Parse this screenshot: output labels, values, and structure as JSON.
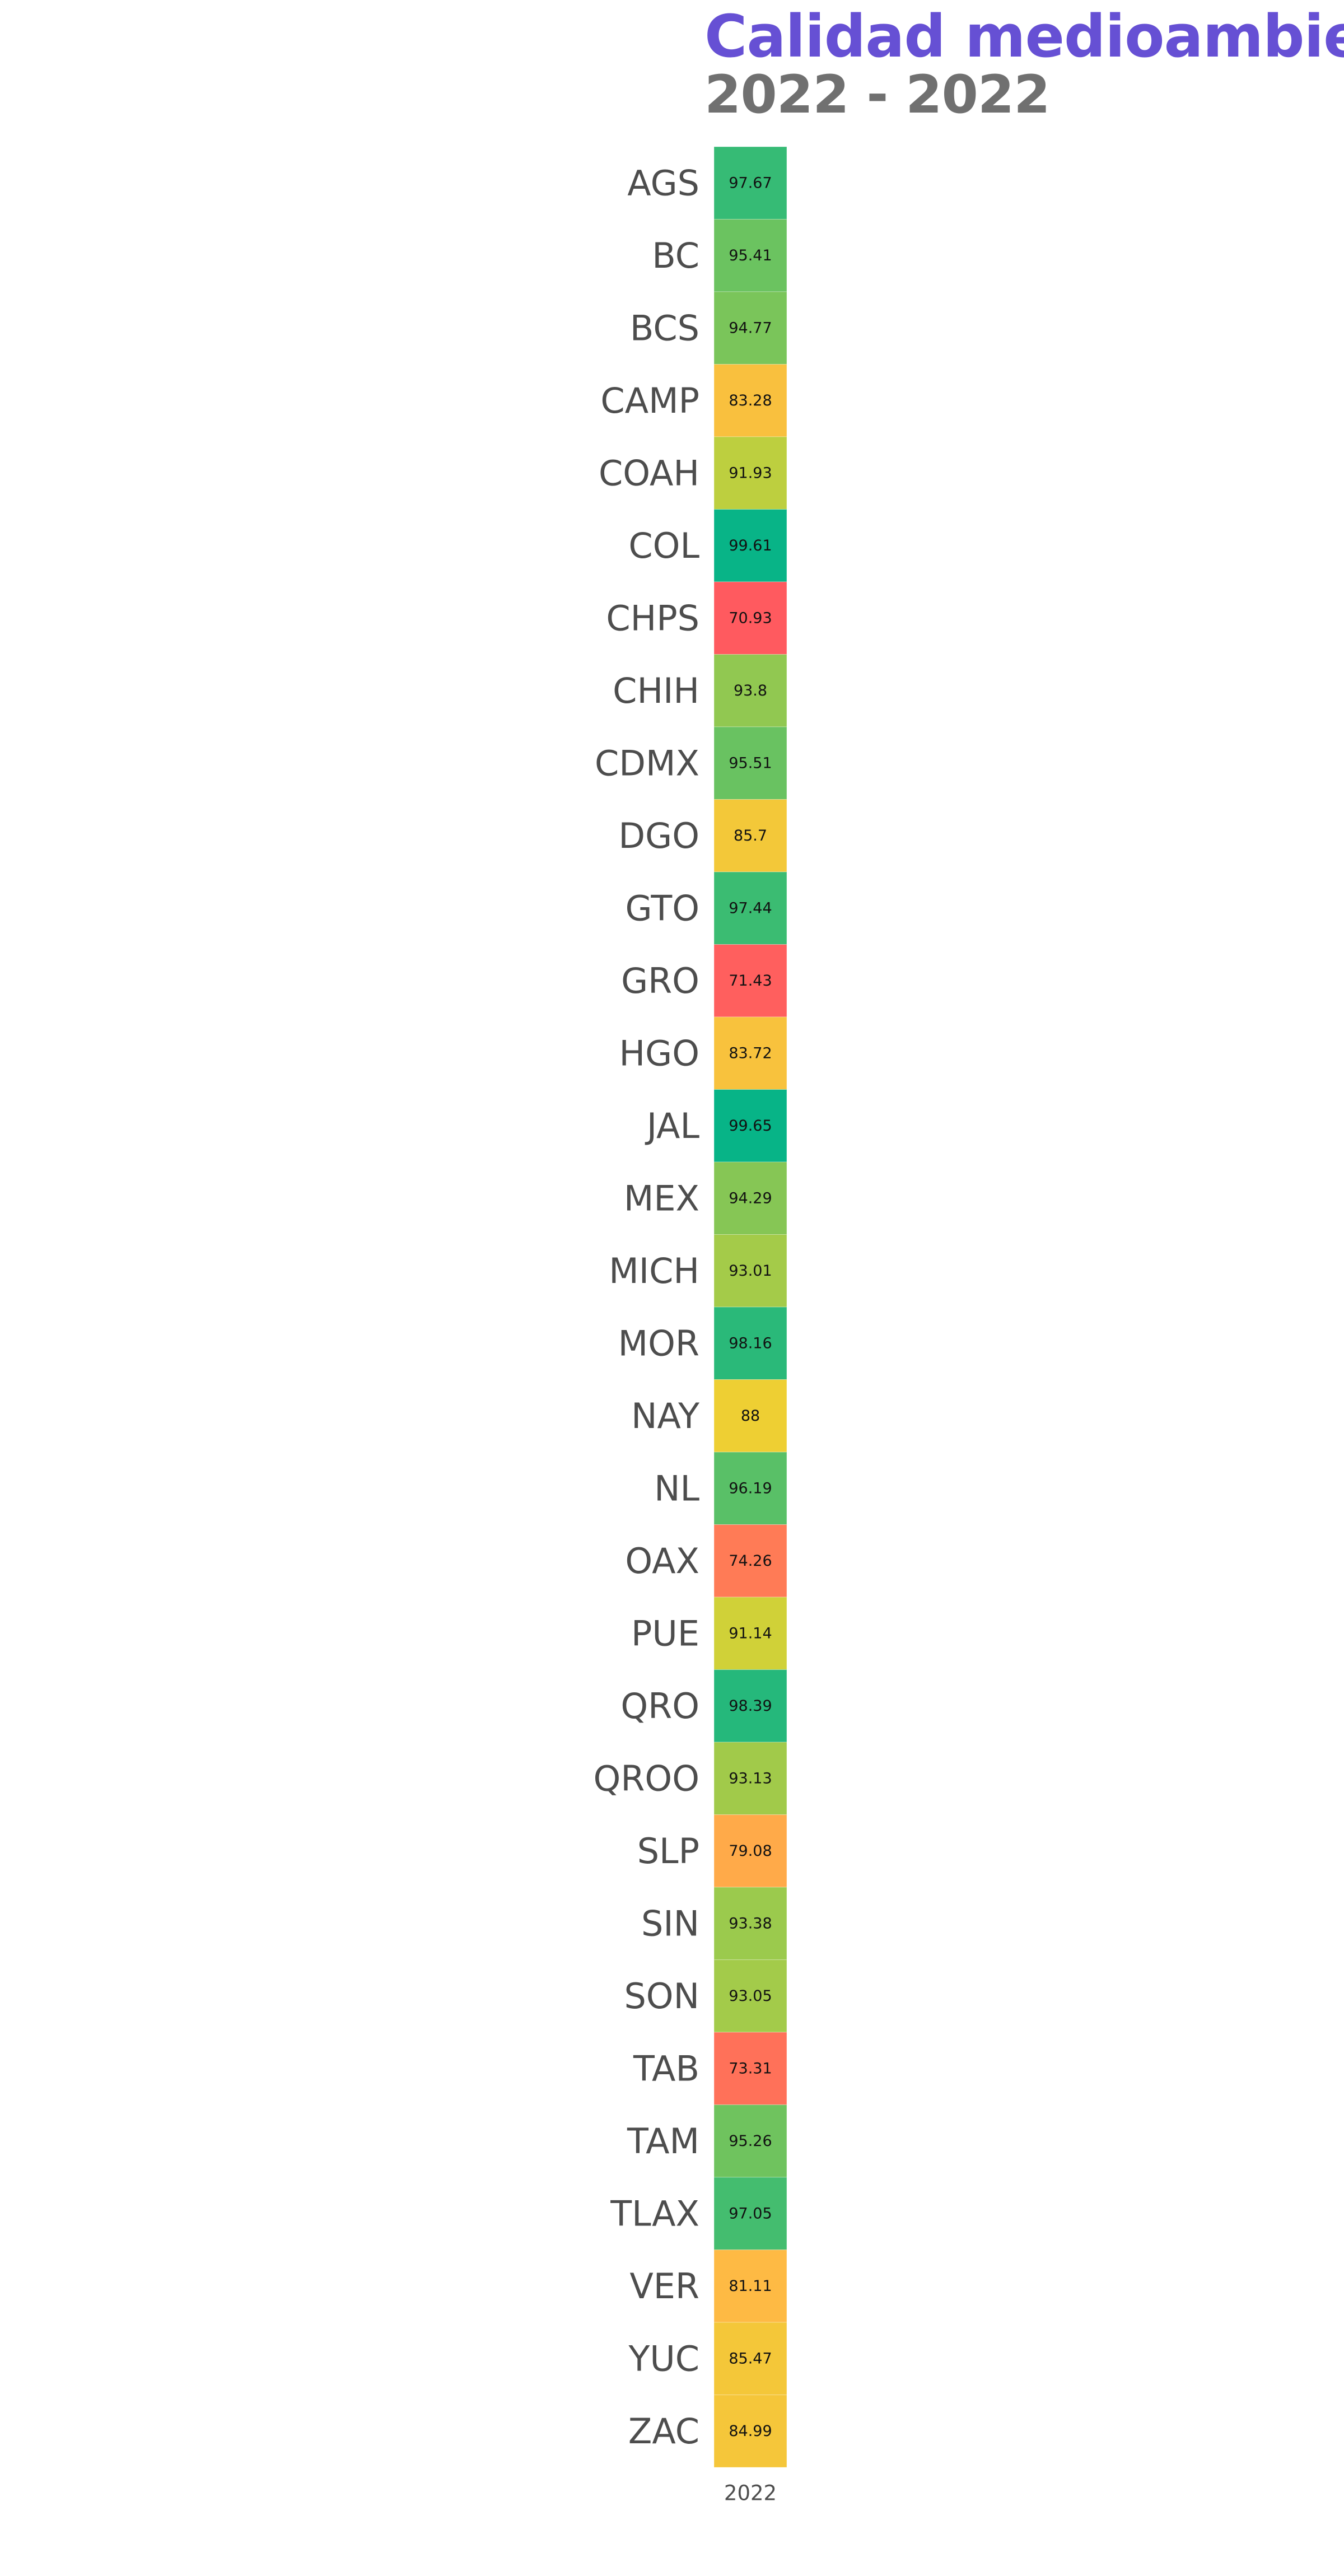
{
  "title": "Calidad medioambien",
  "subtitle": "2022 - 2022",
  "chart_data": {
    "type": "heatmap",
    "title": "Calidad medioambien",
    "subtitle": "2022 - 2022",
    "columns": [
      "2022"
    ],
    "rows": [
      "AGS",
      "BC",
      "BCS",
      "CAMP",
      "COAH",
      "COL",
      "CHPS",
      "CHIH",
      "CDMX",
      "DGO",
      "GTO",
      "GRO",
      "HGO",
      "JAL",
      "MEX",
      "MICH",
      "MOR",
      "NAY",
      "NL",
      "OAX",
      "PUE",
      "QRO",
      "QROO",
      "SLP",
      "SIN",
      "SON",
      "TAB",
      "TAM",
      "TLAX",
      "VER",
      "YUC",
      "ZAC"
    ],
    "values": [
      97.67,
      95.41,
      94.77,
      83.28,
      91.93,
      99.61,
      70.93,
      93.8,
      95.51,
      85.7,
      97.44,
      71.43,
      83.72,
      99.65,
      94.29,
      93.01,
      98.16,
      88,
      96.19,
      74.26,
      91.14,
      98.39,
      93.13,
      79.08,
      93.38,
      93.05,
      73.31,
      95.26,
      97.05,
      81.11,
      85.47,
      84.99
    ],
    "value_labels": [
      "97.67",
      "95.41",
      "94.77",
      "83.28",
      "91.93",
      "99.61",
      "70.93",
      "93.8",
      "95.51",
      "85.7",
      "97.44",
      "71.43",
      "83.72",
      "99.65",
      "94.29",
      "93.01",
      "98.16",
      "88",
      "96.19",
      "74.26",
      "91.14",
      "98.39",
      "93.13",
      "79.08",
      "93.38",
      "93.05",
      "73.31",
      "95.26",
      "97.05",
      "81.11",
      "85.47",
      "84.99"
    ],
    "color_scale": [
      "#ff5a5f",
      "#ffb845",
      "#e9d52e",
      "#07b487"
    ],
    "legend": "none",
    "grid": false
  }
}
